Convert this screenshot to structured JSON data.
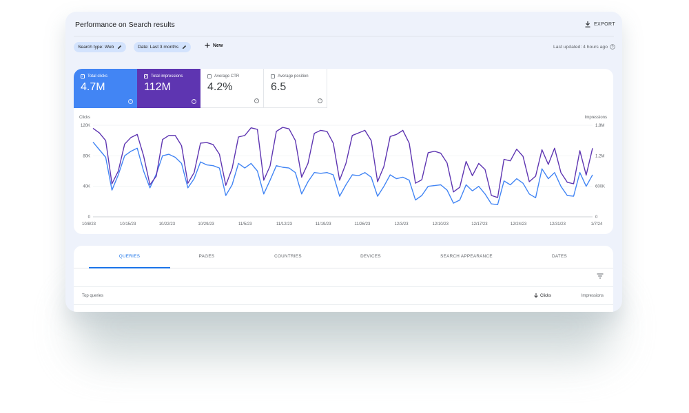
{
  "header": {
    "title": "Performance on Search results",
    "export_label": "EXPORT"
  },
  "filters": {
    "search_type": "Search type: Web",
    "date": "Date: Last 3 months",
    "new_label": "New",
    "last_updated": "Last updated: 4 hours ago"
  },
  "metrics": [
    {
      "label": "Total clicks",
      "value": "4.7M",
      "checked": true
    },
    {
      "label": "Total impressions",
      "value": "112M",
      "checked": true
    },
    {
      "label": "Average CTR",
      "value": "4.2%",
      "checked": false
    },
    {
      "label": "Average position",
      "value": "6.5",
      "checked": false
    }
  ],
  "colors": {
    "clicks": "#4285f4",
    "impressions": "#5e35b1",
    "accent": "#1a73e8"
  },
  "chart_data": {
    "type": "line",
    "y_left_label": "Clicks",
    "y_right_label": "Impressions",
    "y_left_ticks": [
      "0",
      "40K",
      "80K",
      "120K"
    ],
    "y_right_ticks": [
      "0",
      "600K",
      "1.2M",
      "1.8M"
    ],
    "y_left_range": [
      0,
      120000
    ],
    "y_right_range": [
      0,
      1800000
    ],
    "x_tick_labels": [
      "10/8/23",
      "10/15/23",
      "10/22/23",
      "10/29/23",
      "11/5/23",
      "11/12/23",
      "11/19/23",
      "11/26/23",
      "12/3/23",
      "12/10/23",
      "12/17/23",
      "12/24/23",
      "12/31/23",
      "1/7/24"
    ],
    "grid": true,
    "series": [
      {
        "name": "Clicks",
        "axis": "left",
        "values": [
          98000,
          88000,
          78000,
          35000,
          55000,
          80000,
          86000,
          90000,
          60000,
          38000,
          56000,
          80000,
          82000,
          78000,
          70000,
          38000,
          50000,
          72000,
          68000,
          67000,
          64000,
          28000,
          42000,
          70000,
          64000,
          70000,
          60000,
          30000,
          48000,
          67000,
          65000,
          64000,
          58000,
          30000,
          46000,
          58000,
          57000,
          58000,
          55000,
          27000,
          42000,
          55000,
          54000,
          58000,
          52000,
          27000,
          40000,
          55000,
          50000,
          52000,
          48000,
          22000,
          28000,
          40000,
          41000,
          42000,
          35000,
          18000,
          22000,
          42000,
          34000,
          40000,
          30000,
          17000,
          16000,
          47000,
          42000,
          50000,
          44000,
          30000,
          25000,
          63000,
          50000,
          58000,
          40000,
          28000,
          27000,
          58000,
          40000,
          55000
        ]
      },
      {
        "name": "Impressions",
        "axis": "right",
        "values": [
          1740000,
          1650000,
          1500000,
          650000,
          900000,
          1430000,
          1560000,
          1620000,
          1200000,
          630000,
          800000,
          1520000,
          1600000,
          1600000,
          1400000,
          660000,
          870000,
          1450000,
          1460000,
          1420000,
          1230000,
          620000,
          950000,
          1570000,
          1600000,
          1750000,
          1720000,
          720000,
          1000000,
          1680000,
          1760000,
          1730000,
          1500000,
          780000,
          1050000,
          1640000,
          1700000,
          1680000,
          1450000,
          720000,
          1050000,
          1600000,
          1650000,
          1700000,
          1500000,
          690000,
          990000,
          1580000,
          1620000,
          1700000,
          1450000,
          660000,
          730000,
          1260000,
          1290000,
          1250000,
          1060000,
          490000,
          580000,
          1090000,
          810000,
          1050000,
          930000,
          420000,
          380000,
          1130000,
          1100000,
          1330000,
          1190000,
          690000,
          800000,
          1320000,
          1030000,
          1350000,
          870000,
          680000,
          650000,
          1300000,
          820000,
          1350000
        ]
      }
    ]
  },
  "tabs": [
    "QUERIES",
    "PAGES",
    "COUNTRIES",
    "DEVICES",
    "SEARCH APPEARANCE",
    "DATES"
  ],
  "table": {
    "col_queries": "Top queries",
    "col_clicks": "Clicks",
    "col_impressions": "Impressions"
  },
  "icons": {
    "export": "download-icon",
    "edit": "pencil-icon",
    "add": "plus-icon",
    "help": "help-circle-icon",
    "filter": "filter-icon",
    "sort": "arrow-down-icon"
  }
}
